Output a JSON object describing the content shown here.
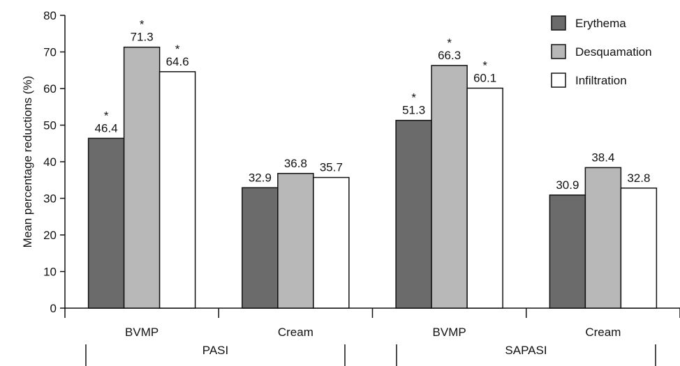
{
  "chart_data": {
    "type": "bar",
    "title": "",
    "ylabel": "Mean percentage reductions (%)",
    "xlabel": "",
    "ylim": [
      0,
      80
    ],
    "yticks": [
      0,
      10,
      20,
      30,
      40,
      50,
      60,
      70,
      80
    ],
    "grid": false,
    "legend_position": "top-right",
    "groups": [
      {
        "label": "PASI",
        "categories": [
          "BVMP",
          "Cream"
        ]
      },
      {
        "label": "SAPASI",
        "categories": [
          "BVMP",
          "Cream"
        ]
      }
    ],
    "categories": [
      "BVMP",
      "Cream",
      "BVMP",
      "Cream"
    ],
    "series": [
      {
        "name": "Erythema",
        "color": "#6b6b6b",
        "values": [
          46.4,
          32.9,
          51.3,
          30.9
        ],
        "significant": [
          true,
          false,
          true,
          false
        ]
      },
      {
        "name": "Desquamation",
        "color": "#b8b8b8",
        "values": [
          71.3,
          36.8,
          66.3,
          38.4
        ],
        "significant": [
          true,
          false,
          true,
          false
        ]
      },
      {
        "name": "Infiltration",
        "color": "#ffffff",
        "values": [
          64.6,
          35.7,
          60.1,
          32.8
        ],
        "significant": [
          true,
          false,
          true,
          false
        ]
      }
    ],
    "significance_marker": "*"
  }
}
